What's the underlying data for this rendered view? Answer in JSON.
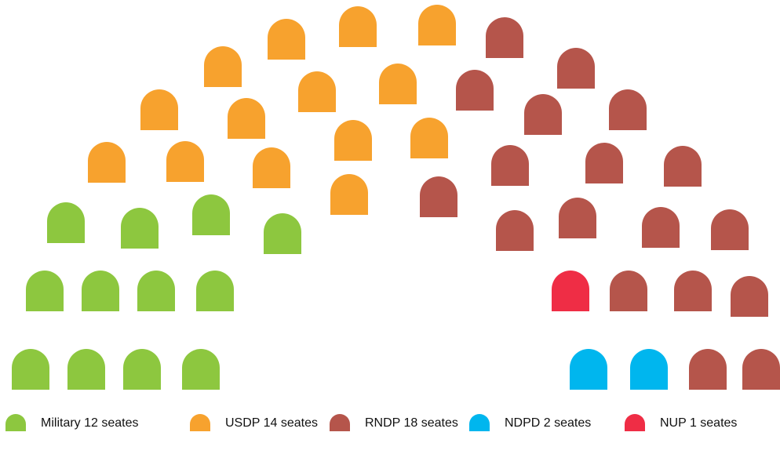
{
  "chart_data": {
    "type": "parliament",
    "values": [
      12,
      14,
      18,
      2,
      1
    ],
    "value_labels": [
      "Military 12 seates",
      "USDP 14 seates",
      "RNDP 18 seates",
      "NDPD 2 seates",
      "NUP 1 seates"
    ],
    "colors": [
      "#8dc73f",
      "#f7a22e",
      "#b5554b",
      "#00b6ee",
      "#ef2d45"
    ]
  }
}
